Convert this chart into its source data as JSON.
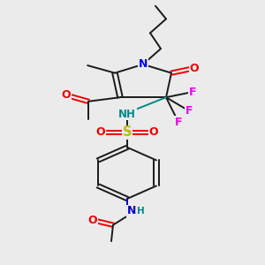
{
  "background_color": "#ebebeb",
  "col_C": "#1a1a1a",
  "col_N_ring": "#0000ee",
  "col_N_amide": "#0000cc",
  "col_NH": "#008888",
  "col_O": "#ee0000",
  "col_F": "#ee00ee",
  "col_S": "#bbbb00",
  "lw": 1.4,
  "fs": 9.0,
  "xlim": [
    0.15,
    0.9
  ],
  "ylim": [
    0.02,
    1.0
  ]
}
